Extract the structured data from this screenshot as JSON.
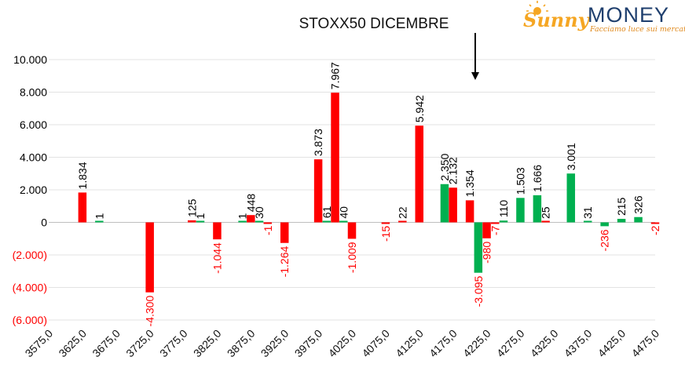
{
  "logo": {
    "brand_first": "Sunny",
    "brand_second": "MONEY",
    "tagline": "Facciamo luce sui mercati",
    "colors": {
      "sunny": "#f5a623",
      "money": "#1f3f6e",
      "tagline": "#e08a1e"
    }
  },
  "chart_data": {
    "type": "bar",
    "title": "STOXX50 DICEMBRE",
    "xlabel": "",
    "ylabel": "",
    "ylim": [
      -6000,
      10000
    ],
    "yticks": [
      {
        "value": 10000,
        "label": "10.000"
      },
      {
        "value": 8000,
        "label": "8.000"
      },
      {
        "value": 6000,
        "label": "6.000"
      },
      {
        "value": 4000,
        "label": "4.000"
      },
      {
        "value": 2000,
        "label": "2.000"
      },
      {
        "value": 0,
        "label": "0"
      },
      {
        "value": -2000,
        "label": "(2.000)"
      },
      {
        "value": -4000,
        "label": "(4.000)"
      },
      {
        "value": -6000,
        "label": "(6.000)"
      }
    ],
    "categories": [
      "3575,0",
      "3625,0",
      "3675,0",
      "3725,0",
      "3775,0",
      "3825,0",
      "3875,0",
      "3925,0",
      "3975,0",
      "4025,0",
      "4075,0",
      "4125,0",
      "4175,0",
      "4225,0",
      "4275,0",
      "4325,0",
      "4375,0",
      "4425,0",
      "4475,0"
    ],
    "gridlines": true,
    "legend": "none",
    "colors": {
      "red": "#ff0000",
      "green": "#00b050",
      "axis_text": "#000000",
      "negative_text": "#ff0000"
    },
    "marker": {
      "type": "arrow-down",
      "category": "4225,0"
    },
    "bars": [
      {
        "x": 3625.0,
        "value": 1834,
        "label": "1.834",
        "color": "red"
      },
      {
        "x": 3650.0,
        "value": 1,
        "label": "1",
        "color": "green"
      },
      {
        "x": 3725.0,
        "value": -4300,
        "label": "-4.300",
        "color": "red"
      },
      {
        "x": 3787.5,
        "value": 125,
        "label": "125",
        "color": "red"
      },
      {
        "x": 3800.0,
        "value": 1,
        "label": "1",
        "color": "green"
      },
      {
        "x": 3825.0,
        "value": -1044,
        "label": "-1.044",
        "color": "red"
      },
      {
        "x": 3862.5,
        "value": 1,
        "label": "1",
        "color": "green"
      },
      {
        "x": 3875.0,
        "value": 448,
        "label": "448",
        "color": "red"
      },
      {
        "x": 3887.5,
        "value": 30,
        "label": "30",
        "color": "green"
      },
      {
        "x": 3900.0,
        "value": -1,
        "label": "-1",
        "color": "red"
      },
      {
        "x": 3925.0,
        "value": -1264,
        "label": "-1.264",
        "color": "red"
      },
      {
        "x": 3975.0,
        "value": 3873,
        "label": "3.873",
        "color": "red"
      },
      {
        "x": 3987.5,
        "value": 61,
        "label": "61",
        "color": "green"
      },
      {
        "x": 4000.0,
        "value": 7967,
        "label": "7.967",
        "color": "red"
      },
      {
        "x": 4012.5,
        "value": 40,
        "label": "40",
        "color": "green"
      },
      {
        "x": 4025.0,
        "value": -1009,
        "label": "-1.009",
        "color": "red"
      },
      {
        "x": 4075.0,
        "value": -15,
        "label": "-15",
        "color": "red"
      },
      {
        "x": 4100.0,
        "value": 22,
        "label": "22",
        "color": "red"
      },
      {
        "x": 4125.0,
        "value": 5942,
        "label": "5.942",
        "color": "red"
      },
      {
        "x": 4162.5,
        "value": 2350,
        "label": "2.350",
        "color": "green"
      },
      {
        "x": 4175.0,
        "value": 2132,
        "label": "2.132",
        "color": "red"
      },
      {
        "x": 4200.0,
        "value": 1354,
        "label": "1.354",
        "color": "red"
      },
      {
        "x": 4212.5,
        "value": -3095,
        "label": "-3.095",
        "color": "green"
      },
      {
        "x": 4225.0,
        "value": -980,
        "label": "-980",
        "color": "red"
      },
      {
        "x": 4237.5,
        "value": -7,
        "label": "-7",
        "color": "red"
      },
      {
        "x": 4250.0,
        "value": 110,
        "label": "110",
        "color": "green"
      },
      {
        "x": 4275.0,
        "value": 1503,
        "label": "1.503",
        "color": "green"
      },
      {
        "x": 4300.0,
        "value": 1666,
        "label": "1.666",
        "color": "green"
      },
      {
        "x": 4312.5,
        "value": 25,
        "label": "25",
        "color": "red"
      },
      {
        "x": 4350.0,
        "value": 3001,
        "label": "3.001",
        "color": "green"
      },
      {
        "x": 4375.0,
        "value": 31,
        "label": "31",
        "color": "green"
      },
      {
        "x": 4400.0,
        "value": -236,
        "label": "-236",
        "color": "green"
      },
      {
        "x": 4425.0,
        "value": 215,
        "label": "215",
        "color": "green"
      },
      {
        "x": 4450.0,
        "value": 326,
        "label": "326",
        "color": "green"
      },
      {
        "x": 4475.0,
        "value": -2,
        "label": "-2",
        "color": "red"
      }
    ]
  }
}
